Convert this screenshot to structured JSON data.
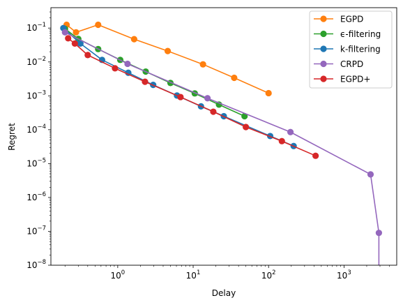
{
  "chart_data": {
    "type": "line",
    "title": "",
    "xlabel": "Delay",
    "ylabel": "Regret",
    "xscale": "log",
    "yscale": "log",
    "xlim": [
      0.13,
      5000
    ],
    "ylim": [
      1e-08,
      0.4
    ],
    "grid": false,
    "legend_position": "upper-right",
    "x_ticks": [
      {
        "value": 1,
        "base": "10",
        "exp": "0"
      },
      {
        "value": 10,
        "base": "10",
        "exp": "1"
      },
      {
        "value": 100,
        "base": "10",
        "exp": "2"
      },
      {
        "value": 1000,
        "base": "10",
        "exp": "3"
      }
    ],
    "y_ticks": [
      {
        "value": 1e-08,
        "base": "10",
        "exp": "−8"
      },
      {
        "value": 1e-07,
        "base": "10",
        "exp": "−7"
      },
      {
        "value": 1e-06,
        "base": "10",
        "exp": "−6"
      },
      {
        "value": 1e-05,
        "base": "10",
        "exp": "−5"
      },
      {
        "value": 0.0001,
        "base": "10",
        "exp": "−4"
      },
      {
        "value": 0.001,
        "base": "10",
        "exp": "−3"
      },
      {
        "value": 0.01,
        "base": "10",
        "exp": "−2"
      },
      {
        "value": 0.1,
        "base": "10",
        "exp": "−1"
      }
    ],
    "series": [
      {
        "name": "EGPD",
        "color": "#ff7f0e",
        "x": [
          0.21,
          0.28,
          0.55,
          1.65,
          4.6,
          13.5,
          35,
          100
        ],
        "y": [
          0.125,
          0.075,
          0.125,
          0.047,
          0.021,
          0.0085,
          0.0034,
          0.0012
        ]
      },
      {
        "name": "ϵ-filtering",
        "color": "#2ca02c",
        "x": [
          0.2,
          0.3,
          0.55,
          1.08,
          2.35,
          5.0,
          10.5,
          22,
          48
        ],
        "y": [
          0.095,
          0.048,
          0.024,
          0.0115,
          0.0052,
          0.0024,
          0.00118,
          0.00055,
          0.00025
        ]
      },
      {
        "name": "k-filtering",
        "color": "#1f77b4",
        "x": [
          0.19,
          0.32,
          0.62,
          1.38,
          2.95,
          6.1,
          12.7,
          25.5,
          105,
          215
        ],
        "y": [
          0.1,
          0.035,
          0.0115,
          0.0048,
          0.0021,
          0.00102,
          0.00049,
          0.00025,
          6.5e-05,
          3.3e-05
        ]
      },
      {
        "name": "CRPD",
        "color": "#9467bd",
        "x": [
          0.2,
          1.35,
          15.5,
          195,
          2250,
          2900,
          2900
        ],
        "y": [
          0.075,
          0.0088,
          0.00085,
          8.5e-05,
          4.8e-06,
          9e-08,
          1e-08
        ]
      },
      {
        "name": "EGPD+",
        "color": "#d62728",
        "x": [
          0.22,
          0.27,
          0.4,
          0.92,
          2.3,
          6.8,
          18.5,
          50,
          150,
          420
        ],
        "y": [
          0.05,
          0.035,
          0.016,
          0.0065,
          0.0026,
          0.00092,
          0.00034,
          0.00012,
          4.6e-05,
          1.7e-05
        ]
      }
    ]
  }
}
